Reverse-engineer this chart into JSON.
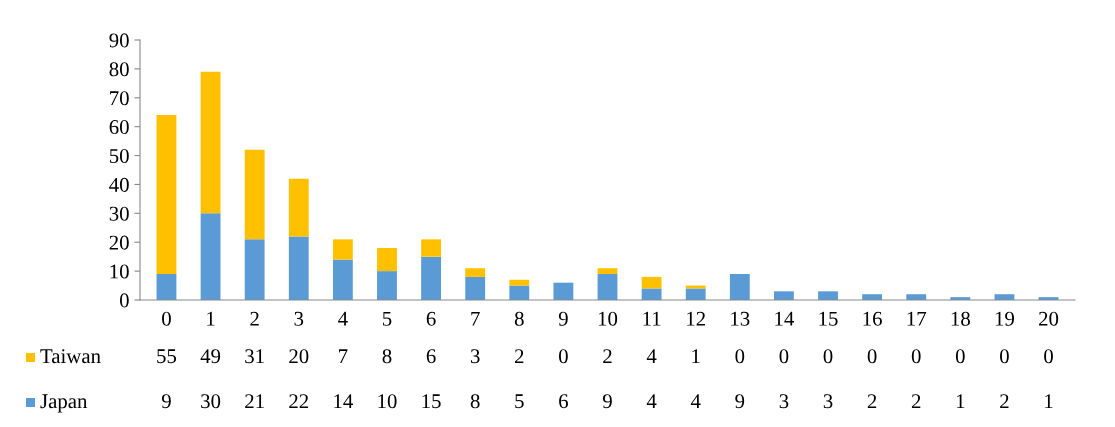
{
  "chart_data": {
    "type": "bar",
    "stacked": true,
    "categories": [
      "0",
      "1",
      "2",
      "3",
      "4",
      "5",
      "6",
      "7",
      "8",
      "9",
      "10",
      "11",
      "12",
      "13",
      "14",
      "15",
      "16",
      "17",
      "18",
      "19",
      "20"
    ],
    "series": [
      {
        "name": "Japan",
        "color": "#5b9bd5",
        "values": [
          9,
          30,
          21,
          22,
          14,
          10,
          15,
          8,
          5,
          6,
          9,
          4,
          4,
          9,
          3,
          3,
          2,
          2,
          1,
          2,
          1
        ]
      },
      {
        "name": "Taiwan",
        "color": "#ffc000",
        "values": [
          55,
          49,
          31,
          20,
          7,
          8,
          6,
          3,
          2,
          0,
          2,
          4,
          1,
          0,
          0,
          0,
          0,
          0,
          0,
          0,
          0
        ]
      }
    ],
    "ylim": [
      0,
      90
    ],
    "yticks": [
      0,
      10,
      20,
      30,
      40,
      50,
      60,
      70,
      80,
      90
    ],
    "grid": false,
    "legend": "bottom left",
    "data_labels": true
  }
}
